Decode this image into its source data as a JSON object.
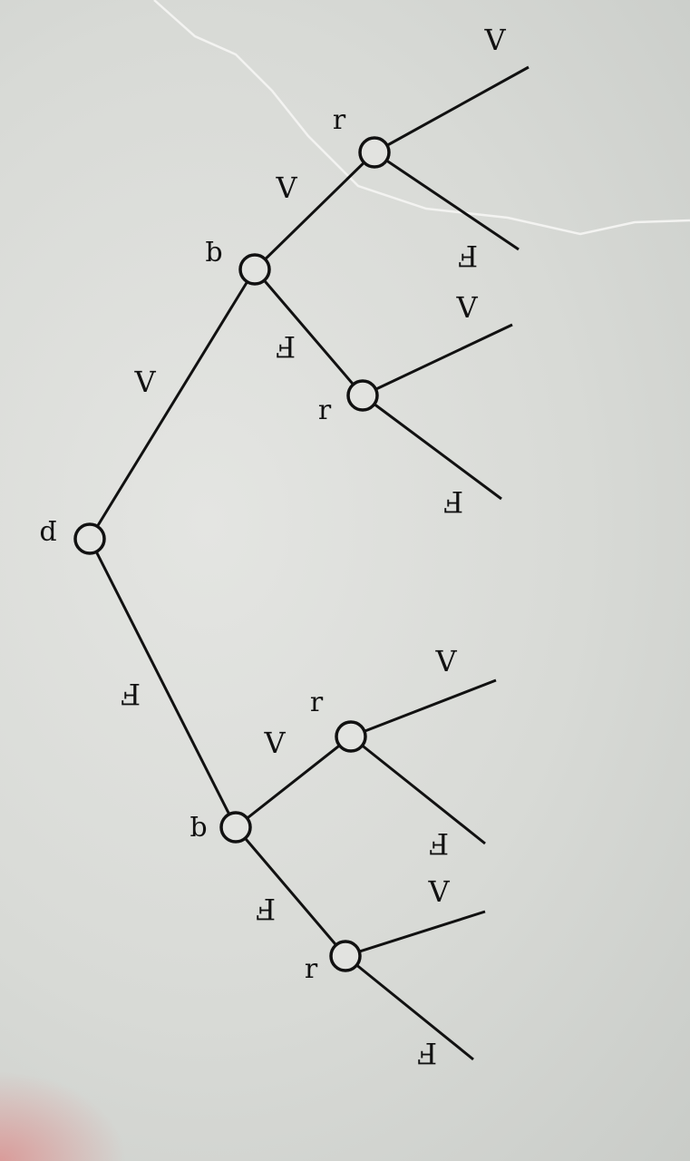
{
  "tree": {
    "root": {
      "var": "p"
    },
    "branches": [
      {
        "label": "V",
        "var": "q",
        "branches": [
          {
            "label": "V",
            "var": "r",
            "leaves": [
              "V",
              "F"
            ]
          },
          {
            "label": "F",
            "var": "r",
            "leaves": [
              "V",
              "F"
            ]
          }
        ]
      },
      {
        "label": "F",
        "var": "q",
        "branches": [
          {
            "label": "V",
            "var": "r",
            "leaves": [
              "V",
              "F"
            ]
          },
          {
            "label": "F",
            "var": "r",
            "leaves": [
              "V",
              "F"
            ]
          }
        ]
      }
    ]
  },
  "colors": {
    "ink": "#111111",
    "paper": "#dcdedb"
  }
}
